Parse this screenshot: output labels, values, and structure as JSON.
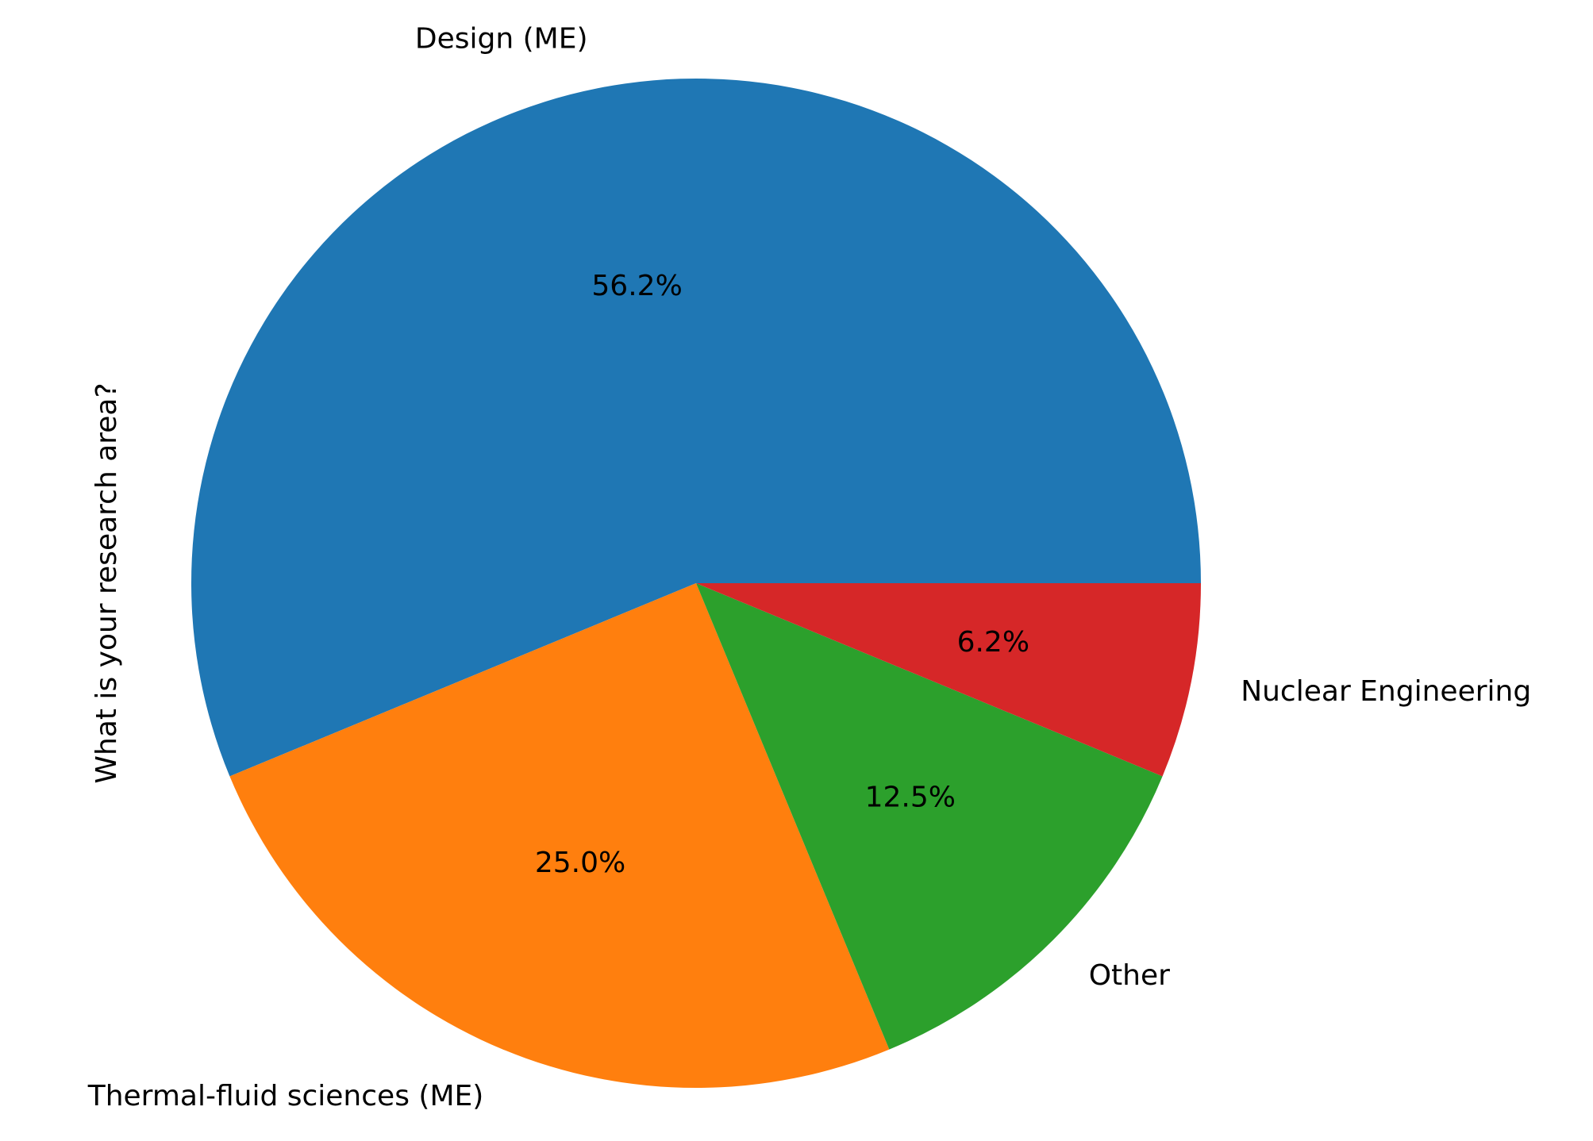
{
  "chart_data": {
    "type": "pie",
    "ylabel": "What is your research area?",
    "categories": [
      "Design (ME)",
      "Thermal-fluid sciences (ME)",
      "Other",
      "Nuclear Engineering"
    ],
    "values": [
      56.25,
      25.0,
      12.5,
      6.25
    ],
    "percent_labels": [
      "56.2%",
      "25.0%",
      "12.5%",
      "6.2%"
    ],
    "colors": [
      "#1f77b4",
      "#ff7f0e",
      "#2ca02c",
      "#d62728"
    ],
    "start_angle": "3 o'clock",
    "direction": "counterclockwise"
  }
}
